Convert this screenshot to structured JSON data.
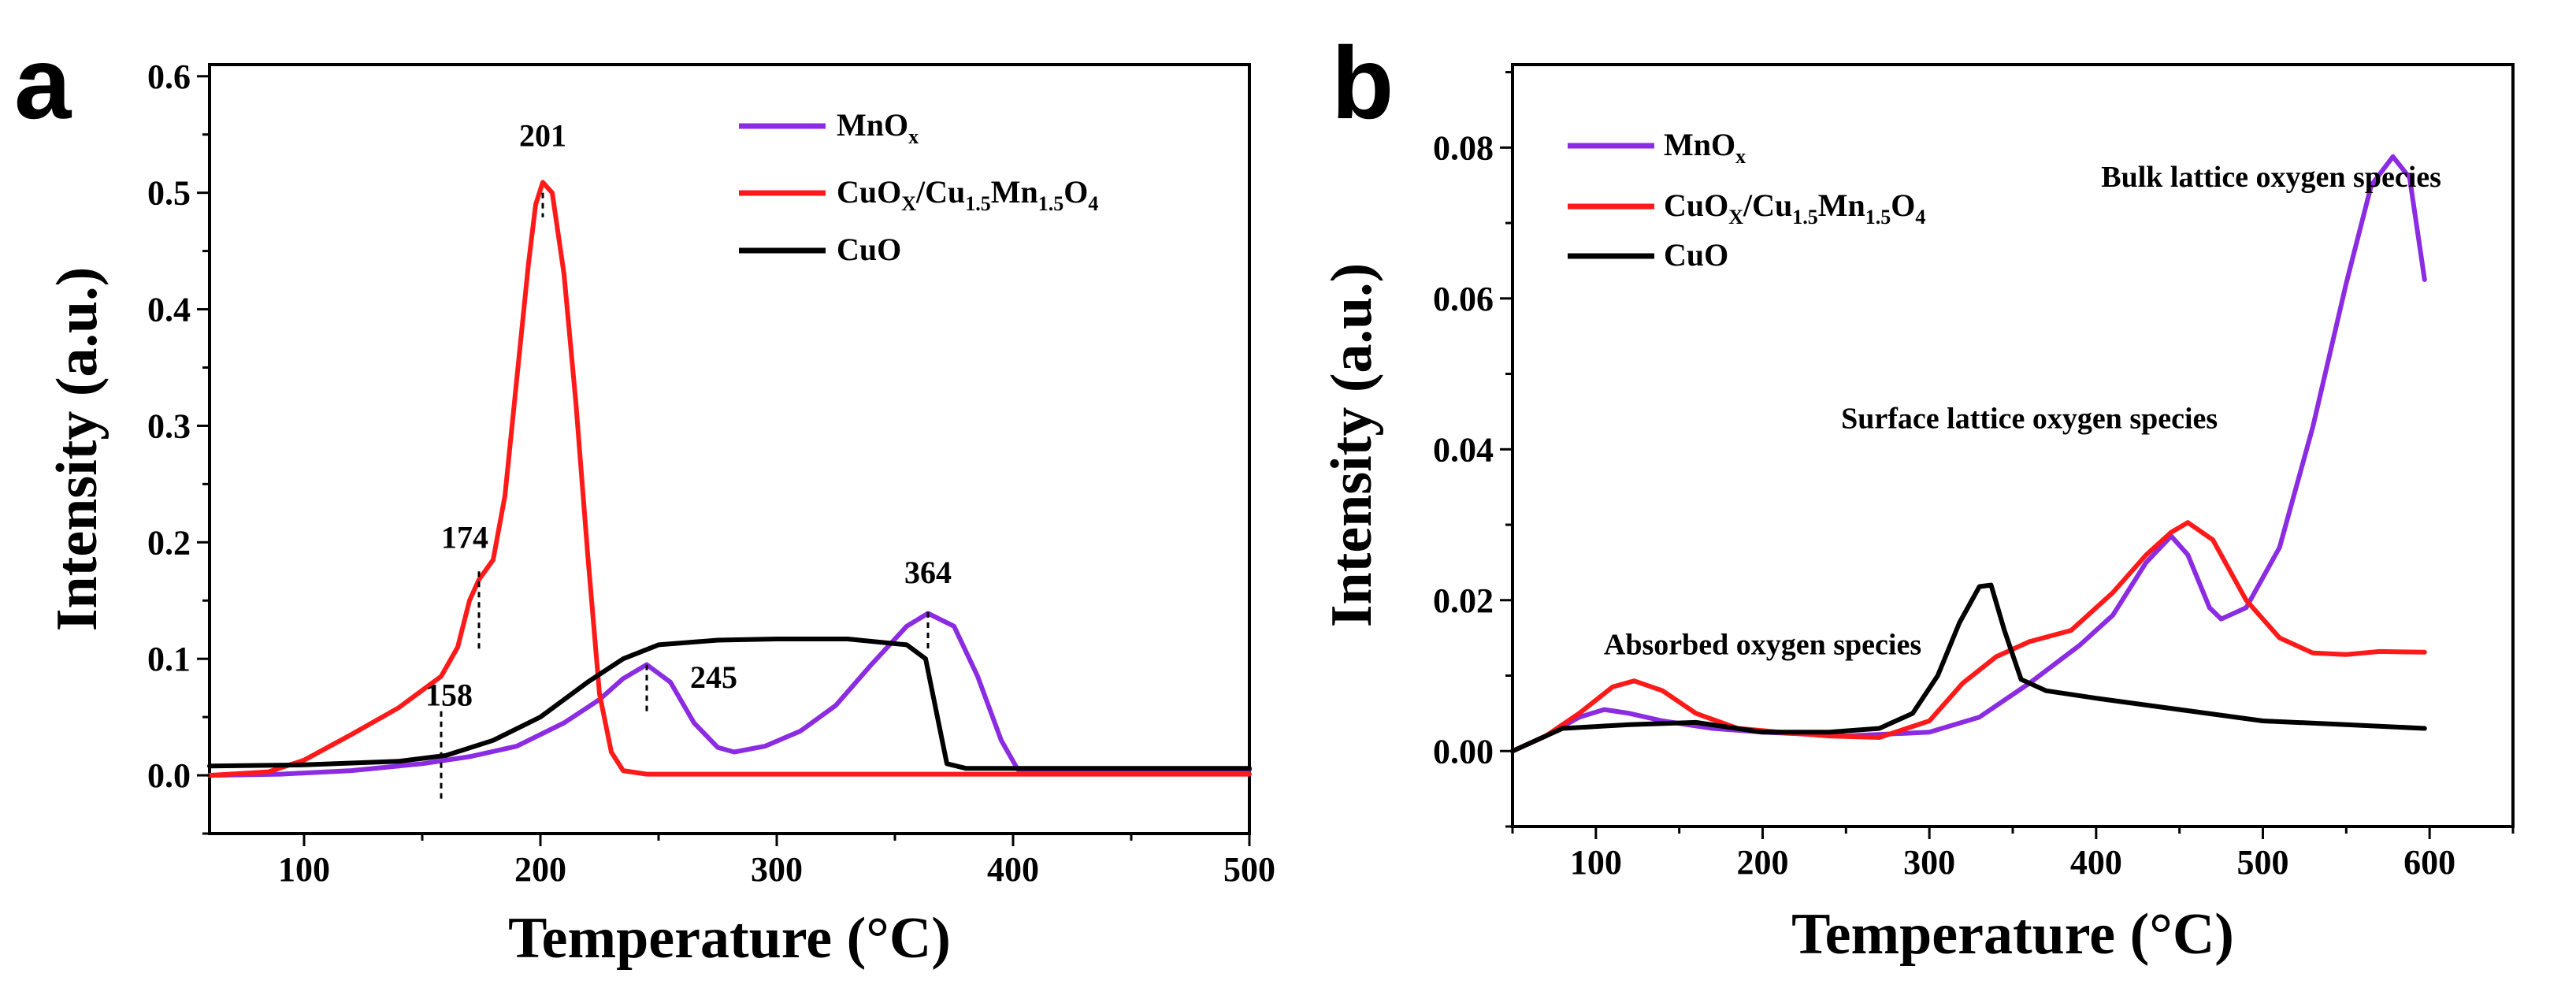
{
  "chart_data": [
    {
      "panel": "a",
      "type": "line",
      "xlabel": "Temperature (°C)",
      "ylabel": "Intensity (a.u.)",
      "xlim": [
        60,
        500
      ],
      "ylim": [
        -0.05,
        0.61
      ],
      "xticks": [
        100,
        200,
        300,
        400,
        500
      ],
      "yticks": [
        0.0,
        0.1,
        0.2,
        0.3,
        0.4,
        0.5,
        0.6
      ],
      "legend_position": "top-right",
      "series": [
        {
          "name": "MnOx",
          "legend_main": "MnO",
          "legend_sub": "x",
          "color": "#8b2be2",
          "points": [
            [
              60,
              0
            ],
            [
              90,
              0.001
            ],
            [
              120,
              0.004
            ],
            [
              150,
              0.01
            ],
            [
              170,
              0.016
            ],
            [
              190,
              0.025
            ],
            [
              210,
              0.045
            ],
            [
              225,
              0.065
            ],
            [
              235,
              0.083
            ],
            [
              245,
              0.095
            ],
            [
              255,
              0.08
            ],
            [
              265,
              0.045
            ],
            [
              275,
              0.024
            ],
            [
              282,
              0.02
            ],
            [
              295,
              0.025
            ],
            [
              310,
              0.038
            ],
            [
              325,
              0.06
            ],
            [
              340,
              0.095
            ],
            [
              355,
              0.128
            ],
            [
              364,
              0.139
            ],
            [
              375,
              0.128
            ],
            [
              385,
              0.085
            ],
            [
              395,
              0.03
            ],
            [
              402,
              0.005
            ],
            [
              410,
              0.005
            ],
            [
              500,
              0.005
            ]
          ]
        },
        {
          "name": "CuOX/Cu1.5Mn1.5O4",
          "legend_main1": "CuO",
          "legend_sub1": "X",
          "legend_main2": "/Cu",
          "legend_sub2": "1.5",
          "legend_main3": "Mn",
          "legend_sub3": "1.5",
          "legend_main4": "O",
          "legend_sub4": "4",
          "color": "#ff1a1a",
          "points": [
            [
              60,
              0
            ],
            [
              85,
              0.003
            ],
            [
              100,
              0.013
            ],
            [
              120,
              0.035
            ],
            [
              140,
              0.058
            ],
            [
              158,
              0.085
            ],
            [
              165,
              0.11
            ],
            [
              170,
              0.15
            ],
            [
              174,
              0.168
            ],
            [
              180,
              0.185
            ],
            [
              185,
              0.24
            ],
            [
              190,
              0.34
            ],
            [
              195,
              0.44
            ],
            [
              198,
              0.49
            ],
            [
              201,
              0.509
            ],
            [
              205,
              0.5
            ],
            [
              210,
              0.43
            ],
            [
              215,
              0.32
            ],
            [
              220,
              0.19
            ],
            [
              225,
              0.07
            ],
            [
              230,
              0.02
            ],
            [
              235,
              0.004
            ],
            [
              245,
              0.001
            ],
            [
              300,
              0.001
            ],
            [
              500,
              0.001
            ]
          ]
        },
        {
          "name": "CuO",
          "legend_main": "CuO",
          "color": "#000000",
          "points": [
            [
              60,
              0.008
            ],
            [
              100,
              0.009
            ],
            [
              140,
              0.012
            ],
            [
              160,
              0.017
            ],
            [
              180,
              0.03
            ],
            [
              200,
              0.05
            ],
            [
              220,
              0.08
            ],
            [
              235,
              0.1
            ],
            [
              250,
              0.112
            ],
            [
              275,
              0.116
            ],
            [
              300,
              0.117
            ],
            [
              330,
              0.117
            ],
            [
              355,
              0.112
            ],
            [
              363,
              0.1
            ],
            [
              368,
              0.05
            ],
            [
              372,
              0.01
            ],
            [
              380,
              0.006
            ],
            [
              500,
              0.006
            ]
          ]
        }
      ],
      "peak_labels": [
        {
          "text": "201",
          "x": 201,
          "y": 0.509,
          "tick_top": 0.5,
          "label_y": 0.54
        },
        {
          "text": "174",
          "x": 174,
          "y": 0.168,
          "tick_top": 0.175,
          "tick_bottom": 0.105,
          "label_y": 0.195
        },
        {
          "text": "158",
          "x": 158,
          "y": 0.085,
          "tick_top": 0.055,
          "tick_bottom": -0.02,
          "label_y": 0.06
        },
        {
          "text": "245",
          "x": 245,
          "y": 0.095,
          "tick_top": 0.095,
          "tick_bottom": 0.055,
          "label_y": 0.075
        },
        {
          "text": "364",
          "x": 364,
          "y": 0.139,
          "tick_top": 0.14,
          "tick_bottom": 0.105,
          "label_y": 0.165
        }
      ]
    },
    {
      "panel": "b",
      "type": "line",
      "xlabel": "Temperature (°C)",
      "ylabel": "Intensity (a.u.)",
      "xlim": [
        50,
        650
      ],
      "ylim": [
        -0.01,
        0.091
      ],
      "xticks": [
        100,
        200,
        300,
        400,
        500,
        600
      ],
      "yticks": [
        0.0,
        0.02,
        0.04,
        0.06,
        0.08
      ],
      "ytick_labels": [
        "0.00",
        "0.02",
        "0.04",
        "0.06",
        "0.08"
      ],
      "legend_position": "top-left",
      "series": [
        {
          "name": "MnOx",
          "legend_main": "MnO",
          "legend_sub": "x",
          "color": "#8b2be2",
          "points": [
            [
              50,
              0
            ],
            [
              70,
              0.002
            ],
            [
              90,
              0.0045
            ],
            [
              105,
              0.0055
            ],
            [
              120,
              0.005
            ],
            [
              140,
              0.004
            ],
            [
              170,
              0.003
            ],
            [
              200,
              0.0025
            ],
            [
              250,
              0.002
            ],
            [
              300,
              0.0025
            ],
            [
              330,
              0.0045
            ],
            [
              360,
              0.009
            ],
            [
              390,
              0.014
            ],
            [
              410,
              0.018
            ],
            [
              430,
              0.025
            ],
            [
              445,
              0.0285
            ],
            [
              455,
              0.026
            ],
            [
              468,
              0.019
            ],
            [
              475,
              0.0175
            ],
            [
              490,
              0.019
            ],
            [
              510,
              0.027
            ],
            [
              530,
              0.043
            ],
            [
              550,
              0.062
            ],
            [
              565,
              0.075
            ],
            [
              578,
              0.0788
            ],
            [
              588,
              0.076
            ],
            [
              597,
              0.0625
            ]
          ]
        },
        {
          "name": "CuOX/Cu1.5Mn1.5O4",
          "legend_main1": "CuO",
          "legend_sub1": "X",
          "legend_main2": "/Cu",
          "legend_sub2": "1.5",
          "legend_main3": "Mn",
          "legend_sub3": "1.5",
          "legend_main4": "O",
          "legend_sub4": "4",
          "color": "#ff1a1a",
          "points": [
            [
              50,
              0
            ],
            [
              70,
              0.002
            ],
            [
              90,
              0.005
            ],
            [
              110,
              0.0085
            ],
            [
              123,
              0.0093
            ],
            [
              140,
              0.008
            ],
            [
              160,
              0.005
            ],
            [
              185,
              0.003
            ],
            [
              210,
              0.0025
            ],
            [
              240,
              0.002
            ],
            [
              270,
              0.0018
            ],
            [
              300,
              0.004
            ],
            [
              320,
              0.009
            ],
            [
              340,
              0.0125
            ],
            [
              360,
              0.0145
            ],
            [
              385,
              0.016
            ],
            [
              410,
              0.021
            ],
            [
              430,
              0.026
            ],
            [
              445,
              0.029
            ],
            [
              455,
              0.0303
            ],
            [
              470,
              0.028
            ],
            [
              490,
              0.02
            ],
            [
              510,
              0.015
            ],
            [
              530,
              0.013
            ],
            [
              550,
              0.0128
            ],
            [
              570,
              0.0132
            ],
            [
              597,
              0.0131
            ]
          ]
        },
        {
          "name": "CuO",
          "legend_main": "CuO",
          "color": "#000000",
          "points": [
            [
              50,
              0
            ],
            [
              80,
              0.003
            ],
            [
              120,
              0.0035
            ],
            [
              160,
              0.0038
            ],
            [
              200,
              0.0025
            ],
            [
              240,
              0.0025
            ],
            [
              270,
              0.003
            ],
            [
              290,
              0.005
            ],
            [
              305,
              0.01
            ],
            [
              318,
              0.017
            ],
            [
              330,
              0.0218
            ],
            [
              337,
              0.022
            ],
            [
              345,
              0.016
            ],
            [
              355,
              0.0095
            ],
            [
              370,
              0.008
            ],
            [
              400,
              0.007
            ],
            [
              450,
              0.0055
            ],
            [
              500,
              0.004
            ],
            [
              550,
              0.0035
            ],
            [
              597,
              0.003
            ]
          ]
        }
      ],
      "annotations": [
        {
          "text": "Absorbed oxygen species",
          "x": 200,
          "y": 0.0128
        },
        {
          "text": "Surface lattice oxygen species",
          "x": 360,
          "y": 0.0428
        },
        {
          "text": "Bulk lattice oxygen species",
          "x": 505,
          "y": 0.0748
        }
      ]
    }
  ]
}
